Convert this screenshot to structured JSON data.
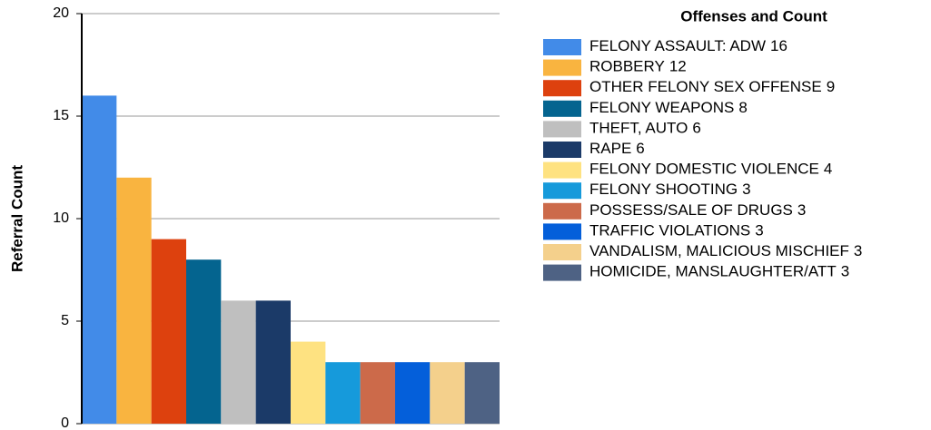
{
  "chart_data": {
    "type": "bar",
    "y_label": "Referral Count",
    "legend_title": "Offenses and Count",
    "categories": [
      "FELONY ASSAULT: ADW",
      "ROBBERY",
      "OTHER FELONY SEX OFFENSE",
      "FELONY WEAPONS",
      "THEFT, AUTO",
      "RAPE",
      "FELONY DOMESTIC VIOLENCE",
      "FELONY SHOOTING",
      "POSSESS/SALE OF DRUGS",
      "TRAFFIC VIOLATIONS",
      "VANDALISM, MALICIOUS MISCHIEF",
      "HOMICIDE, MANSLAUGHTER/ATT"
    ],
    "values": [
      16,
      12,
      9,
      8,
      6,
      6,
      4,
      3,
      3,
      3,
      3,
      3
    ],
    "colors": [
      "#428be8",
      "#f9b440",
      "#dd410e",
      "#04648f",
      "#bfbfbf",
      "#1b3a68",
      "#fee281",
      "#169adb",
      "#cc6a4a",
      "#045fda",
      "#f4d08c",
      "#4e6284"
    ],
    "ylim": [
      0,
      20
    ],
    "yticks": [
      0,
      5,
      10,
      15,
      20
    ],
    "grid": true,
    "legend": "right"
  }
}
